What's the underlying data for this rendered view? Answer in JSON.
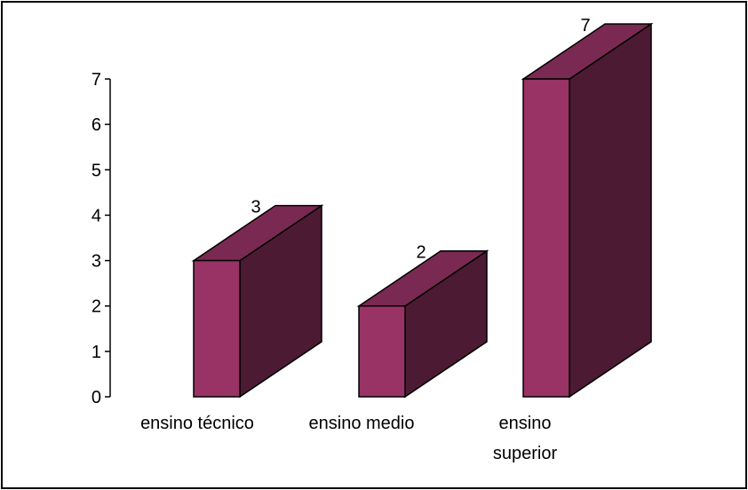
{
  "chart_data": {
    "type": "bar",
    "style": "3d-column",
    "categories": [
      [
        "ensino técnico"
      ],
      [
        "ensino medio"
      ],
      [
        "ensino",
        "superior"
      ]
    ],
    "values": [
      3,
      2,
      7
    ],
    "data_labels": [
      "3",
      "2",
      "7"
    ],
    "ylim": [
      0,
      7
    ],
    "yticks": [
      "0",
      "1",
      "2",
      "3",
      "4",
      "5",
      "6",
      "7"
    ],
    "grid": false,
    "legend": "none",
    "colors": {
      "front": "#993366",
      "side": "#4D1A33",
      "top": "#7A2952",
      "outline": "#000000",
      "border": "#000000"
    }
  }
}
